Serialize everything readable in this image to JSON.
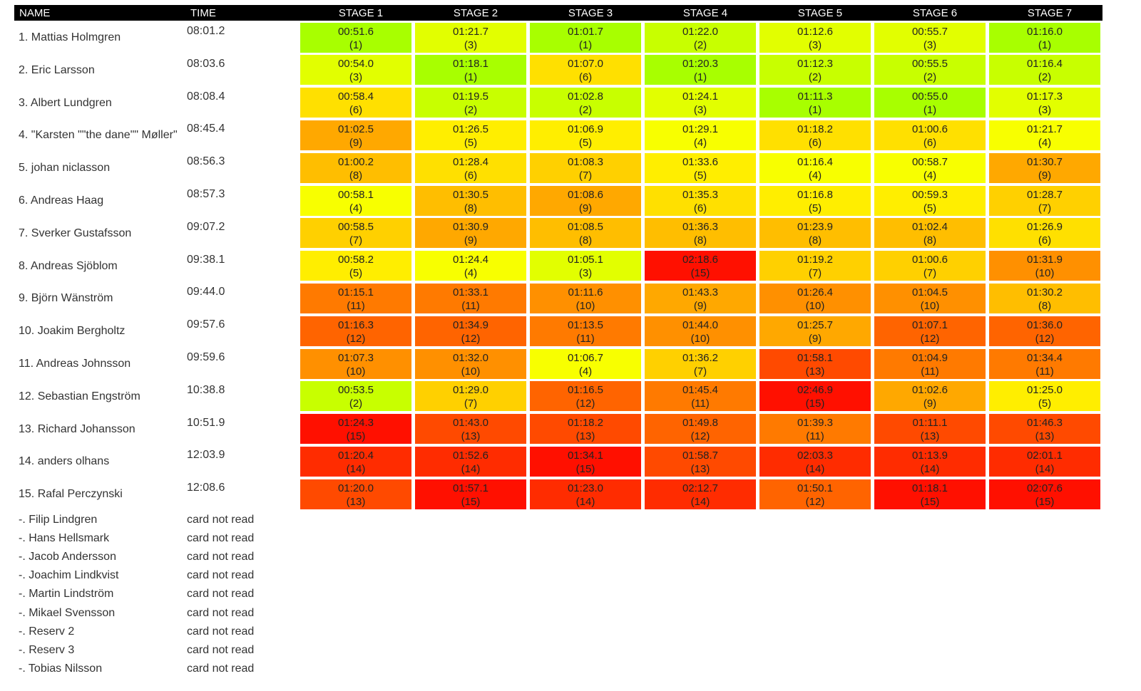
{
  "header": {
    "name": "NAME",
    "time": "TIME",
    "stages": [
      "STAGE 1",
      "STAGE 2",
      "STAGE 3",
      "STAGE 4",
      "STAGE 5",
      "STAGE 6",
      "STAGE 7"
    ]
  },
  "rows": [
    {
      "name": "1. Mattias Holmgren",
      "time": "08:01.2",
      "stages": [
        [
          "00:51.6",
          "(1)"
        ],
        [
          "01:21.7",
          "(3)"
        ],
        [
          "01:01.7",
          "(1)"
        ],
        [
          "01:22.0",
          "(2)"
        ],
        [
          "01:12.6",
          "(3)"
        ],
        [
          "00:55.7",
          "(3)"
        ],
        [
          "01:16.0",
          "(1)"
        ]
      ]
    },
    {
      "name": "2. Eric Larsson",
      "time": "08:03.6",
      "stages": [
        [
          "00:54.0",
          "(3)"
        ],
        [
          "01:18.1",
          "(1)"
        ],
        [
          "01:07.0",
          "(6)"
        ],
        [
          "01:20.3",
          "(1)"
        ],
        [
          "01:12.3",
          "(2)"
        ],
        [
          "00:55.5",
          "(2)"
        ],
        [
          "01:16.4",
          "(2)"
        ]
      ]
    },
    {
      "name": "3. Albert Lundgren",
      "time": "08:08.4",
      "stages": [
        [
          "00:58.4",
          "(6)"
        ],
        [
          "01:19.5",
          "(2)"
        ],
        [
          "01:02.8",
          "(2)"
        ],
        [
          "01:24.1",
          "(3)"
        ],
        [
          "01:11.3",
          "(1)"
        ],
        [
          "00:55.0",
          "(1)"
        ],
        [
          "01:17.3",
          "(3)"
        ]
      ]
    },
    {
      "name": "4. \"Karsten \"\"the dane\"\" Møller\"",
      "time": "08:45.4",
      "stages": [
        [
          "01:02.5",
          "(9)"
        ],
        [
          "01:26.5",
          "(5)"
        ],
        [
          "01:06.9",
          "(5)"
        ],
        [
          "01:29.1",
          "(4)"
        ],
        [
          "01:18.2",
          "(6)"
        ],
        [
          "01:00.6",
          "(6)"
        ],
        [
          "01:21.7",
          "(4)"
        ]
      ]
    },
    {
      "name": "5. johan niclasson",
      "time": "08:56.3",
      "stages": [
        [
          "01:00.2",
          "(8)"
        ],
        [
          "01:28.4",
          "(6)"
        ],
        [
          "01:08.3",
          "(7)"
        ],
        [
          "01:33.6",
          "(5)"
        ],
        [
          "01:16.4",
          "(4)"
        ],
        [
          "00:58.7",
          "(4)"
        ],
        [
          "01:30.7",
          "(9)"
        ]
      ]
    },
    {
      "name": "6. Andreas Haag",
      "time": "08:57.3",
      "stages": [
        [
          "00:58.1",
          "(4)"
        ],
        [
          "01:30.5",
          "(8)"
        ],
        [
          "01:08.6",
          "(9)"
        ],
        [
          "01:35.3",
          "(6)"
        ],
        [
          "01:16.8",
          "(5)"
        ],
        [
          "00:59.3",
          "(5)"
        ],
        [
          "01:28.7",
          "(7)"
        ]
      ]
    },
    {
      "name": "7. Sverker Gustafsson",
      "time": "09:07.2",
      "stages": [
        [
          "00:58.5",
          "(7)"
        ],
        [
          "01:30.9",
          "(9)"
        ],
        [
          "01:08.5",
          "(8)"
        ],
        [
          "01:36.3",
          "(8)"
        ],
        [
          "01:23.9",
          "(8)"
        ],
        [
          "01:02.4",
          "(8)"
        ],
        [
          "01:26.9",
          "(6)"
        ]
      ]
    },
    {
      "name": "8. Andreas Sjöblom",
      "time": "09:38.1",
      "stages": [
        [
          "00:58.2",
          "(5)"
        ],
        [
          "01:24.4",
          "(4)"
        ],
        [
          "01:05.1",
          "(3)"
        ],
        [
          "02:18.6",
          "(15)"
        ],
        [
          "01:19.2",
          "(7)"
        ],
        [
          "01:00.6",
          "(7)"
        ],
        [
          "01:31.9",
          "(10)"
        ]
      ]
    },
    {
      "name": "9. Björn Wänström",
      "time": "09:44.0",
      "stages": [
        [
          "01:15.1",
          "(11)"
        ],
        [
          "01:33.1",
          "(11)"
        ],
        [
          "01:11.6",
          "(10)"
        ],
        [
          "01:43.3",
          "(9)"
        ],
        [
          "01:26.4",
          "(10)"
        ],
        [
          "01:04.5",
          "(10)"
        ],
        [
          "01:30.2",
          "(8)"
        ]
      ]
    },
    {
      "name": "10. Joakim Bergholtz",
      "time": "09:57.6",
      "stages": [
        [
          "01:16.3",
          "(12)"
        ],
        [
          "01:34.9",
          "(12)"
        ],
        [
          "01:13.5",
          "(11)"
        ],
        [
          "01:44.0",
          "(10)"
        ],
        [
          "01:25.7",
          "(9)"
        ],
        [
          "01:07.1",
          "(12)"
        ],
        [
          "01:36.0",
          "(12)"
        ]
      ]
    },
    {
      "name": "11. Andreas Johnsson",
      "time": "09:59.6",
      "stages": [
        [
          "01:07.3",
          "(10)"
        ],
        [
          "01:32.0",
          "(10)"
        ],
        [
          "01:06.7",
          "(4)"
        ],
        [
          "01:36.2",
          "(7)"
        ],
        [
          "01:58.1",
          "(13)"
        ],
        [
          "01:04.9",
          "(11)"
        ],
        [
          "01:34.4",
          "(11)"
        ]
      ]
    },
    {
      "name": "12. Sebastian Engström",
      "time": "10:38.8",
      "stages": [
        [
          "00:53.5",
          "(2)"
        ],
        [
          "01:29.0",
          "(7)"
        ],
        [
          "01:16.5",
          "(12)"
        ],
        [
          "01:45.4",
          "(11)"
        ],
        [
          "02:46.9",
          "(15)"
        ],
        [
          "01:02.6",
          "(9)"
        ],
        [
          "01:25.0",
          "(5)"
        ]
      ]
    },
    {
      "name": "13. Richard Johansson",
      "time": "10:51.9",
      "stages": [
        [
          "01:24.3",
          "(15)"
        ],
        [
          "01:43.0",
          "(13)"
        ],
        [
          "01:18.2",
          "(13)"
        ],
        [
          "01:49.8",
          "(12)"
        ],
        [
          "01:39.3",
          "(11)"
        ],
        [
          "01:11.1",
          "(13)"
        ],
        [
          "01:46.3",
          "(13)"
        ]
      ]
    },
    {
      "name": "14. anders olhans",
      "time": "12:03.9",
      "stages": [
        [
          "01:20.4",
          "(14)"
        ],
        [
          "01:52.6",
          "(14)"
        ],
        [
          "01:34.1",
          "(15)"
        ],
        [
          "01:58.7",
          "(13)"
        ],
        [
          "02:03.3",
          "(14)"
        ],
        [
          "01:13.9",
          "(14)"
        ],
        [
          "02:01.1",
          "(14)"
        ]
      ]
    },
    {
      "name": "15. Rafal Perczynski",
      "time": "12:08.6",
      "stages": [
        [
          "01:20.0",
          "(13)"
        ],
        [
          "01:57.1",
          "(15)"
        ],
        [
          "01:23.0",
          "(14)"
        ],
        [
          "02:12.7",
          "(14)"
        ],
        [
          "01:50.1",
          "(12)"
        ],
        [
          "01:18.1",
          "(15)"
        ],
        [
          "02:07.6",
          "(15)"
        ]
      ]
    }
  ],
  "unread": [
    {
      "name": "-. Filip Lindgren",
      "time": "card not read"
    },
    {
      "name": "-. Hans Hellsmark",
      "time": "card not read"
    },
    {
      "name": "-. Jacob Andersson",
      "time": "card not read"
    },
    {
      "name": "-. Joachim Lindkvist",
      "time": "card not read"
    },
    {
      "name": "-. Martin Lindström",
      "time": "card not read"
    },
    {
      "name": "-. Mikael Svensson",
      "time": "card not read"
    },
    {
      "name": "-. Reserv 2",
      "time": "card not read"
    },
    {
      "name": "-. Reserv 3",
      "time": "card not read"
    },
    {
      "name": "-. Tobias Nilsson",
      "time": "card not read"
    }
  ],
  "rank_colors": {
    "1": "#a8ff00",
    "2": "#c8ff00",
    "3": "#e2ff00",
    "4": "#f8ff00",
    "5": "#ffee00",
    "6": "#ffe000",
    "7": "#ffd000",
    "8": "#ffbe00",
    "9": "#ffa800",
    "10": "#ff9000",
    "11": "#ff7a00",
    "12": "#ff6400",
    "13": "#ff4a00",
    "14": "#ff2c00",
    "15": "#ff1000"
  }
}
